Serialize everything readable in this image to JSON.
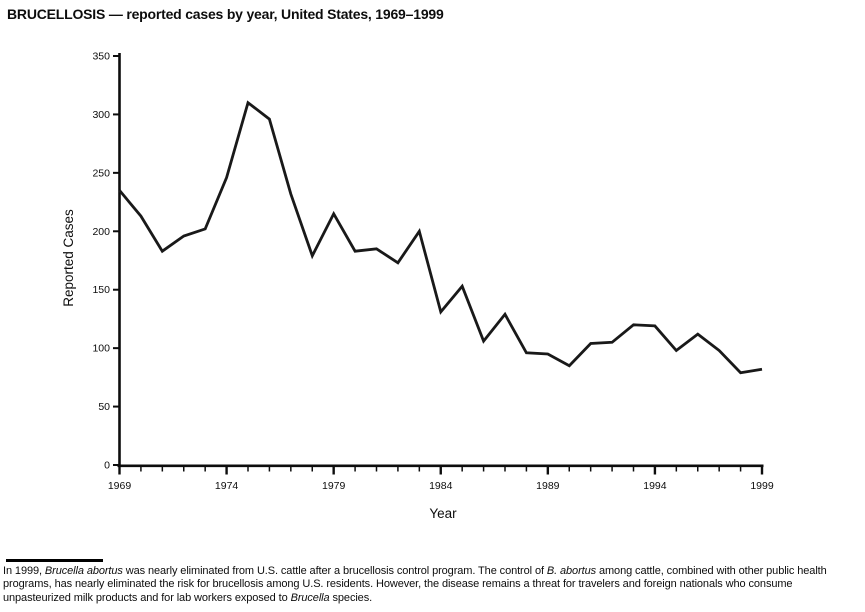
{
  "page": {
    "ink_color": "#0d0d0d",
    "background_color": "#ffffff"
  },
  "chart_data": {
    "type": "line",
    "title": "BRUCELLOSIS — reported cases by year, United States, 1969–1999",
    "xlabel": "Year",
    "ylabel": "Reported Cases",
    "x": [
      1969,
      1970,
      1971,
      1972,
      1973,
      1974,
      1975,
      1976,
      1977,
      1978,
      1979,
      1980,
      1981,
      1982,
      1983,
      1984,
      1985,
      1986,
      1987,
      1988,
      1989,
      1990,
      1991,
      1992,
      1993,
      1994,
      1995,
      1996,
      1997,
      1998,
      1999
    ],
    "values": [
      235,
      213,
      183,
      196,
      202,
      246,
      310,
      296,
      232,
      179,
      215,
      183,
      185,
      173,
      200,
      131,
      153,
      106,
      129,
      96,
      95,
      85,
      104,
      105,
      120,
      119,
      98,
      112,
      98,
      79,
      82
    ],
    "ylim": [
      0,
      350
    ],
    "ytick_step": 50,
    "ytick_labels": [
      "0",
      "50",
      "100",
      "150",
      "200",
      "250",
      "300",
      "350"
    ],
    "xtick_labeled_years": [
      1969,
      1974,
      1979,
      1984,
      1989,
      1994,
      1999
    ],
    "xtick_minor_every_year": true,
    "grid": false,
    "legend": "none",
    "line_color": "#191919"
  },
  "footnote": {
    "segments": [
      {
        "text": "In 1999, ",
        "italic": false
      },
      {
        "text": "Brucella abortus",
        "italic": true
      },
      {
        "text": " was nearly eliminated from U.S. cattle after a brucellosis control program. The control of ",
        "italic": false
      },
      {
        "text": "B. abortus",
        "italic": true
      },
      {
        "text": " among cattle, combined with other public health programs, has nearly eliminated the risk for brucellosis among U.S. residents. However, the disease remains a threat for travelers and foreign nationals who consume unpasteurized milk products and for lab workers exposed to ",
        "italic": false
      },
      {
        "text": "Brucella",
        "italic": true
      },
      {
        "text": " species.",
        "italic": false
      }
    ]
  }
}
